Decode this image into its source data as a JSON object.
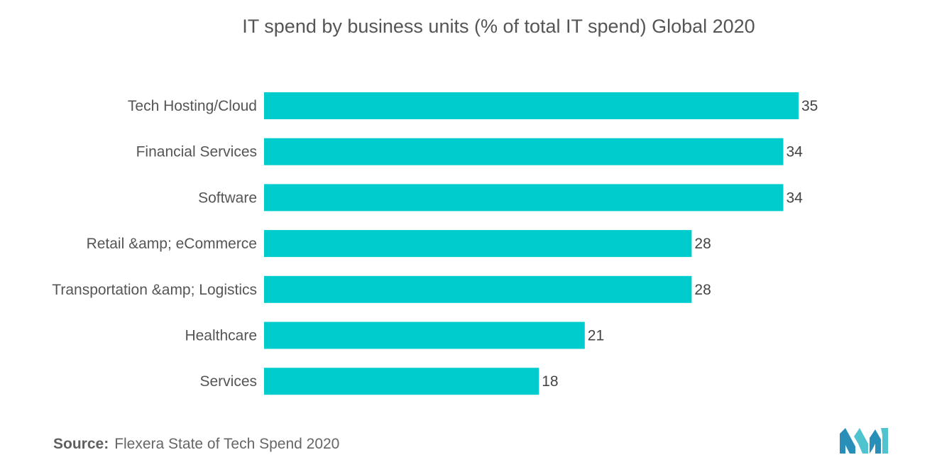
{
  "chart_data": {
    "type": "bar",
    "orientation": "horizontal",
    "title": "IT spend by business units (% of total IT spend) Global 2020",
    "categories": [
      "Tech Hosting/Cloud",
      "Financial Services",
      "Software",
      "Retail &amp; eCommerce",
      "Transportation &amp; Logistics",
      "Healthcare",
      "Services"
    ],
    "values": [
      35,
      34,
      34,
      28,
      28,
      21,
      18
    ],
    "xlabel": "",
    "ylabel": "",
    "xlim": [
      0,
      35
    ],
    "grid": false,
    "legend": "none",
    "bar_color": "#00ccce",
    "source_label": "Source:",
    "source_text": "Flexera State of Tech Spend 2020"
  }
}
